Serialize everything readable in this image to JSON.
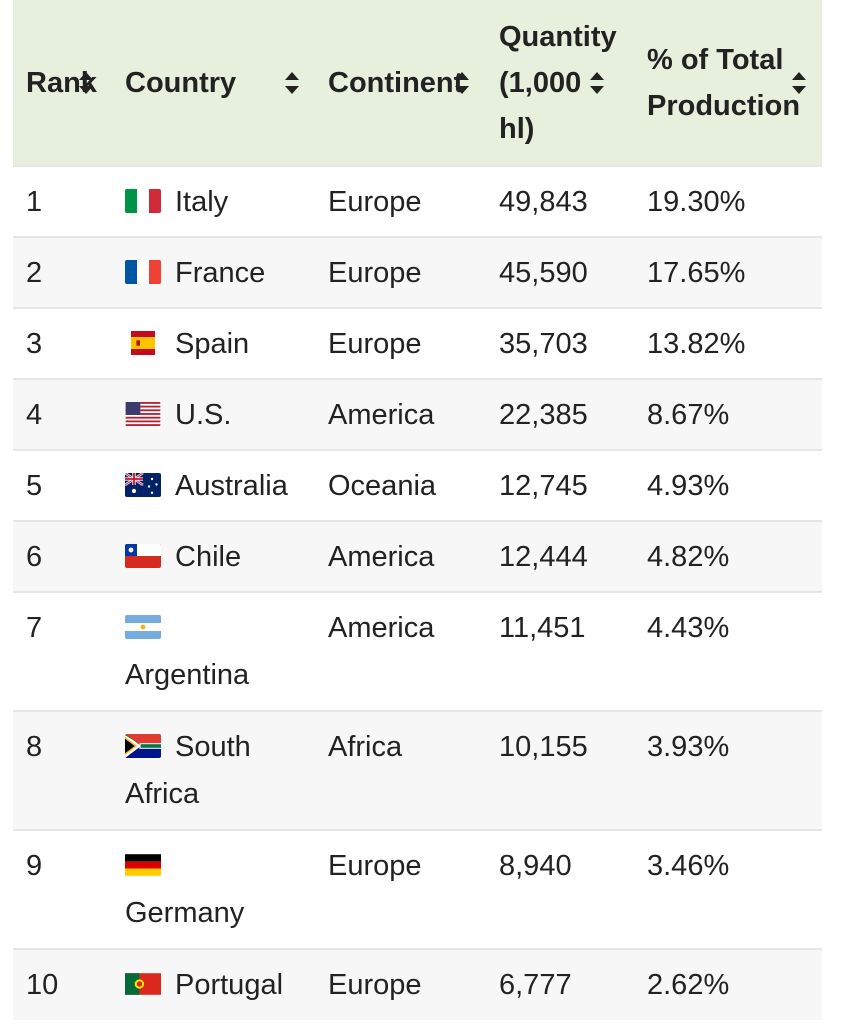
{
  "table": {
    "headers": {
      "rank": "Rank",
      "country": "Country",
      "continent": "Continent",
      "quantity": [
        "Quantity",
        "(1,000",
        "hl)"
      ],
      "percent": [
        "% of Total",
        "Production"
      ]
    },
    "rows": [
      {
        "rank": "1",
        "flag": "italy-flag",
        "country": "Italy",
        "continent": "Europe",
        "quantity": "49,843",
        "percent": "19.30%"
      },
      {
        "rank": "2",
        "flag": "france-flag",
        "country": "France",
        "continent": "Europe",
        "quantity": "45,590",
        "percent": "17.65%"
      },
      {
        "rank": "3",
        "flag": "spain-flag",
        "country": "Spain",
        "continent": "Europe",
        "quantity": "35,703",
        "percent": "13.82%"
      },
      {
        "rank": "4",
        "flag": "us-flag",
        "country": "U.S.",
        "continent": "America",
        "quantity": "22,385",
        "percent": "8.67%"
      },
      {
        "rank": "5",
        "flag": "australia-flag",
        "country": "Australia",
        "continent": "Oceania",
        "quantity": "12,745",
        "percent": "4.93%"
      },
      {
        "rank": "6",
        "flag": "chile-flag",
        "country": "Chile",
        "continent": "America",
        "quantity": "12,444",
        "percent": "4.82%"
      },
      {
        "rank": "7",
        "flag": "argentina-flag",
        "country": "Argentina",
        "continent": "America",
        "quantity": "11,451",
        "percent": "4.43%"
      },
      {
        "rank": "8",
        "flag": "south-africa-flag",
        "country": "South Africa",
        "continent": "Africa",
        "quantity": "10,155",
        "percent": "3.93%"
      },
      {
        "rank": "9",
        "flag": "germany-flag",
        "country": "Germany",
        "continent": "Europe",
        "quantity": "8,940",
        "percent": "3.46%"
      },
      {
        "rank": "10",
        "flag": "portugal-flag",
        "country": "Portugal",
        "continent": "Europe",
        "quantity": "6,777",
        "percent": "2.62%"
      }
    ]
  },
  "colors": {
    "header_bg": "#e7efdd",
    "row_alt_bg": "#f7f7f7",
    "border": "#e6e6e6",
    "text": "#222222"
  }
}
